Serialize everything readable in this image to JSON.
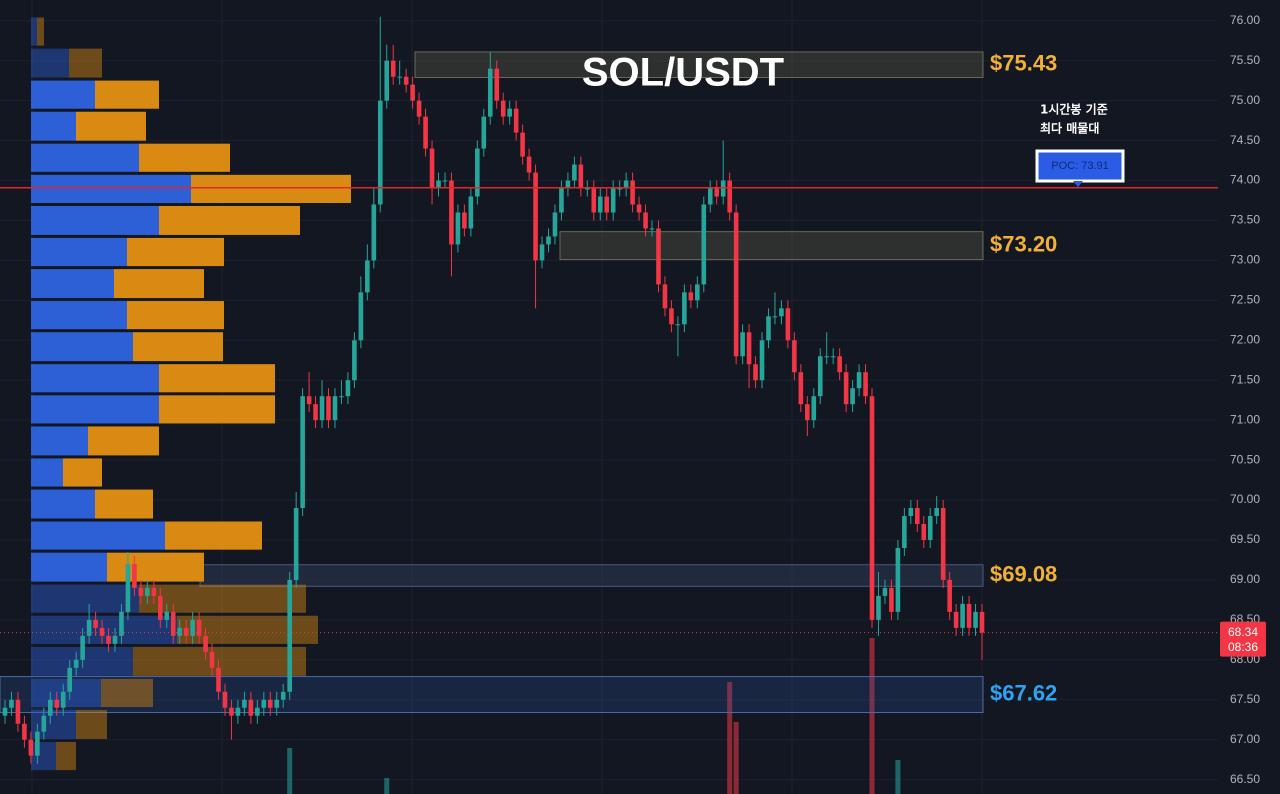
{
  "chart_data": {
    "type": "candlestick",
    "title": "SOL/USDT",
    "up_color": "#26a69a",
    "down_color": "#f23645",
    "open": [
      67.3,
      67.4,
      67.5,
      67.2,
      67.0,
      66.8,
      67.1,
      67.3,
      67.5,
      67.4,
      67.6,
      67.9,
      68.0,
      68.3,
      68.5,
      68.4,
      68.3,
      68.2,
      68.3,
      68.6,
      69.2,
      68.9,
      68.8,
      68.9,
      68.8,
      68.5,
      68.6,
      68.3,
      68.4,
      68.3,
      68.5,
      68.3,
      68.1,
      67.9,
      67.6,
      67.4,
      67.3,
      67.4,
      67.5,
      67.3,
      67.4,
      67.5,
      67.4,
      67.5,
      67.6,
      69.0,
      69.9,
      71.3,
      71.2,
      71.0,
      71.3,
      71.0,
      71.3,
      71.3,
      71.5,
      72.0,
      72.6,
      73.0,
      73.7,
      75.0,
      75.5,
      75.3,
      75.3,
      75.2,
      75.0,
      74.8,
      74.4,
      73.9,
      74.0,
      74.0,
      73.2,
      73.6,
      73.4,
      73.8,
      74.4,
      74.8,
      75.4,
      75.0,
      74.8,
      74.9,
      74.6,
      74.3,
      74.1,
      73.0,
      73.2,
      73.3,
      73.6,
      73.9,
      74.0,
      74.2,
      73.9,
      73.9,
      73.6,
      73.8,
      73.6,
      73.9,
      73.9,
      74.0,
      73.7,
      73.6,
      73.4,
      73.4,
      72.7,
      72.4,
      72.2,
      72.2,
      72.6,
      72.5,
      72.7,
      73.7,
      73.9,
      73.8,
      74.0,
      73.6,
      71.8,
      72.1,
      71.7,
      71.5,
      72.0,
      72.3,
      72.3,
      72.4,
      72.0,
      71.6,
      71.2,
      71.0,
      71.3,
      71.8,
      71.8,
      71.8,
      71.6,
      71.2,
      71.4,
      71.6,
      71.3,
      68.5,
      68.8,
      68.9,
      68.6,
      69.4,
      69.8,
      69.9,
      69.7,
      69.5,
      69.8,
      69.9,
      69.0,
      68.6,
      68.4,
      68.7,
      68.4,
      68.6
    ],
    "high": [
      67.5,
      67.6,
      67.6,
      67.3,
      67.1,
      67.2,
      67.4,
      67.6,
      67.6,
      67.7,
      68.0,
      68.1,
      68.4,
      68.7,
      68.6,
      68.5,
      68.4,
      68.4,
      68.7,
      69.35,
      69.3,
      69.0,
      69.0,
      69.0,
      68.9,
      68.7,
      68.7,
      68.5,
      68.5,
      68.6,
      68.6,
      68.4,
      68.2,
      68.0,
      67.7,
      67.5,
      67.5,
      67.6,
      67.6,
      67.5,
      67.6,
      67.6,
      67.6,
      67.7,
      69.1,
      70.1,
      71.4,
      71.6,
      71.3,
      71.5,
      71.4,
      71.4,
      71.5,
      71.6,
      72.1,
      72.8,
      73.2,
      73.9,
      76.05,
      75.7,
      75.7,
      75.5,
      75.4,
      75.3,
      75.1,
      74.9,
      74.5,
      74.1,
      74.1,
      74.1,
      73.7,
      73.7,
      73.9,
      74.5,
      74.9,
      75.6,
      75.5,
      75.1,
      75.0,
      75.0,
      74.7,
      74.4,
      74.2,
      73.3,
      73.4,
      73.7,
      74.0,
      74.1,
      74.3,
      74.3,
      74.0,
      74.0,
      73.9,
      73.9,
      74.0,
      74.0,
      74.1,
      74.1,
      73.8,
      73.7,
      73.5,
      73.5,
      72.8,
      72.5,
      72.3,
      72.7,
      72.7,
      72.8,
      73.8,
      74.0,
      74.0,
      74.5,
      74.1,
      73.7,
      72.2,
      72.2,
      71.8,
      72.1,
      72.4,
      72.6,
      72.5,
      72.5,
      72.1,
      71.7,
      71.3,
      71.4,
      71.9,
      72.1,
      71.9,
      71.9,
      71.7,
      71.5,
      71.7,
      71.7,
      71.4,
      69.1,
      69.0,
      69.0,
      69.5,
      69.9,
      70.0,
      70.0,
      69.8,
      69.9,
      70.05,
      70.0,
      69.1,
      68.7,
      68.8,
      68.8,
      68.7,
      68.7
    ],
    "low": [
      67.2,
      67.3,
      67.1,
      66.9,
      66.7,
      66.7,
      67.0,
      67.2,
      67.3,
      67.3,
      67.5,
      67.8,
      67.9,
      68.2,
      68.3,
      68.2,
      68.1,
      68.1,
      68.2,
      68.5,
      68.8,
      68.7,
      68.7,
      68.7,
      68.4,
      68.4,
      68.2,
      68.2,
      68.2,
      68.2,
      68.2,
      68.0,
      67.8,
      67.5,
      67.3,
      67.0,
      67.2,
      67.3,
      67.2,
      67.2,
      67.3,
      67.3,
      67.3,
      67.4,
      67.5,
      68.9,
      69.8,
      71.1,
      70.9,
      70.9,
      70.9,
      70.9,
      71.2,
      71.2,
      71.4,
      71.9,
      72.5,
      72.9,
      73.6,
      74.9,
      75.2,
      75.2,
      75.1,
      74.9,
      74.7,
      74.3,
      73.7,
      73.8,
      73.9,
      72.8,
      73.1,
      73.3,
      73.3,
      73.7,
      74.3,
      74.7,
      74.9,
      74.7,
      74.7,
      74.5,
      74.2,
      74.0,
      72.4,
      72.9,
      73.1,
      73.2,
      73.5,
      73.8,
      73.9,
      73.8,
      73.8,
      73.5,
      73.5,
      73.5,
      73.5,
      73.8,
      73.8,
      73.6,
      73.5,
      73.3,
      73.3,
      72.6,
      72.3,
      72.1,
      71.8,
      72.1,
      72.4,
      72.4,
      72.6,
      73.6,
      73.7,
      73.7,
      73.5,
      71.7,
      71.7,
      71.4,
      71.4,
      71.4,
      71.9,
      72.2,
      72.2,
      71.9,
      71.5,
      71.1,
      70.8,
      70.9,
      71.2,
      71.7,
      71.7,
      71.5,
      71.1,
      71.1,
      71.3,
      71.2,
      68.4,
      68.3,
      68.7,
      68.5,
      68.5,
      69.3,
      69.7,
      69.6,
      69.4,
      69.4,
      69.7,
      68.9,
      68.5,
      68.3,
      68.3,
      68.3,
      68.3,
      68.0
    ],
    "close": [
      67.4,
      67.5,
      67.2,
      67.0,
      66.8,
      67.1,
      67.3,
      67.5,
      67.4,
      67.6,
      67.9,
      68.0,
      68.3,
      68.5,
      68.4,
      68.3,
      68.2,
      68.3,
      68.6,
      69.2,
      68.9,
      68.8,
      68.9,
      68.8,
      68.5,
      68.6,
      68.3,
      68.4,
      68.3,
      68.5,
      68.3,
      68.1,
      67.9,
      67.6,
      67.4,
      67.3,
      67.4,
      67.5,
      67.3,
      67.4,
      67.5,
      67.4,
      67.5,
      67.6,
      69.0,
      69.9,
      71.3,
      71.2,
      71.0,
      71.3,
      71.0,
      71.3,
      71.3,
      71.5,
      72.0,
      72.6,
      73.0,
      73.7,
      75.0,
      75.5,
      75.3,
      75.3,
      75.2,
      75.0,
      74.8,
      74.4,
      73.9,
      74.0,
      74.0,
      73.2,
      73.6,
      73.4,
      73.8,
      74.4,
      74.8,
      75.4,
      75.0,
      74.8,
      74.9,
      74.6,
      74.3,
      74.1,
      73.0,
      73.2,
      73.3,
      73.6,
      73.9,
      74.0,
      74.2,
      73.9,
      73.9,
      73.6,
      73.8,
      73.6,
      73.9,
      73.9,
      74.0,
      73.7,
      73.6,
      73.4,
      73.4,
      72.7,
      72.4,
      72.2,
      72.2,
      72.6,
      72.5,
      72.7,
      73.7,
      73.9,
      73.8,
      74.0,
      73.6,
      71.8,
      72.1,
      71.7,
      71.5,
      72.0,
      72.3,
      72.3,
      72.4,
      72.0,
      71.6,
      71.2,
      71.0,
      71.3,
      71.8,
      71.8,
      71.8,
      71.6,
      71.2,
      71.4,
      71.6,
      71.3,
      68.5,
      68.8,
      68.9,
      68.6,
      69.4,
      69.8,
      69.9,
      69.7,
      69.5,
      69.8,
      69.9,
      69.0,
      68.6,
      68.4,
      68.7,
      68.4,
      68.6,
      68.34
    ],
    "volume": [
      null,
      null,
      null,
      null,
      null,
      null,
      null,
      null,
      null,
      null,
      null,
      null,
      null,
      null,
      null,
      null,
      null,
      null,
      null,
      null,
      null,
      null,
      null,
      null,
      null,
      null,
      null,
      null,
      null,
      null,
      null,
      null,
      null,
      null,
      null,
      null,
      null,
      null,
      null,
      null,
      null,
      null,
      null,
      null,
      46,
      null,
      null,
      null,
      null,
      null,
      null,
      null,
      null,
      null,
      null,
      null,
      null,
      null,
      null,
      16,
      null,
      null,
      null,
      null,
      null,
      null,
      null,
      null,
      null,
      null,
      null,
      null,
      null,
      null,
      null,
      null,
      null,
      null,
      null,
      null,
      null,
      null,
      null,
      null,
      null,
      null,
      null,
      null,
      null,
      null,
      null,
      null,
      null,
      null,
      null,
      null,
      null,
      null,
      null,
      null,
      null,
      null,
      null,
      null,
      null,
      null,
      null,
      null,
      null,
      null,
      null,
      null,
      112,
      72,
      null,
      null,
      null,
      null,
      null,
      null,
      null,
      null,
      null,
      null,
      null,
      null,
      null,
      null,
      null,
      null,
      null,
      null,
      null,
      null,
      156,
      null,
      null,
      null,
      34,
      null,
      null,
      null,
      null,
      null,
      null,
      null,
      null,
      null,
      null,
      null,
      null,
      null
    ],
    "ylim": [
      66.32,
      76.26
    ],
    "yticks": [
      {
        "value": 66.5,
        "label": "66.50"
      },
      {
        "value": 67,
        "label": "67.00"
      },
      {
        "value": 67.5,
        "label": "67.50"
      },
      {
        "value": 68,
        "label": "68.00"
      },
      {
        "value": 68.5,
        "label": "68.50"
      },
      {
        "value": 69,
        "label": "69.00"
      },
      {
        "value": 69.5,
        "label": "69.50"
      },
      {
        "value": 70,
        "label": "70.00"
      },
      {
        "value": 70.5,
        "label": "70.50"
      },
      {
        "value": 71,
        "label": "71.00"
      },
      {
        "value": 71.5,
        "label": "71.50"
      },
      {
        "value": 72,
        "label": "72.00"
      },
      {
        "value": 72.5,
        "label": "72.50"
      },
      {
        "value": 73,
        "label": "73.00"
      },
      {
        "value": 73.5,
        "label": "73.50"
      },
      {
        "value": 74,
        "label": "74.00"
      },
      {
        "value": 74.5,
        "label": "74.50"
      },
      {
        "value": 75,
        "label": "75.00"
      },
      {
        "value": 75.5,
        "label": "75.50"
      },
      {
        "value": 76,
        "label": "76.00"
      }
    ],
    "grid": true,
    "volume_profile": {
      "bins": [
        66.6,
        66.99,
        67.39,
        67.78,
        68.18,
        68.57,
        68.96,
        69.36,
        69.75,
        70.15,
        70.54,
        70.94,
        71.33,
        71.72,
        72.12,
        72.51,
        72.91,
        73.3,
        73.7,
        74.09,
        74.48,
        74.88,
        75.27,
        75.67,
        76.06
      ],
      "buy": [
        25,
        45,
        70,
        102,
        146,
        108,
        76,
        134,
        64,
        32,
        57,
        128,
        128,
        102,
        96,
        83,
        96,
        128,
        160,
        108,
        45,
        64,
        38,
        6
      ],
      "sell": [
        20,
        31,
        52,
        173,
        141,
        167,
        97,
        97,
        58,
        39,
        71,
        116,
        116,
        90,
        97,
        90,
        97,
        141,
        160,
        91,
        70,
        64,
        33,
        7
      ],
      "buy_color": "#2d5fd6",
      "sell_color": "#d98a12",
      "value_area": [
        68.96,
        75.27
      ]
    },
    "zones": [
      {
        "value": 75.43,
        "label": "$75.43",
        "top": 75.61,
        "bottom": 75.29,
        "color": "#f2b134"
      },
      {
        "value": 73.2,
        "label": "$73.20",
        "top": 73.36,
        "bottom": 73.01,
        "color": "#f2b134"
      },
      {
        "value": 69.08,
        "label": "$69.08",
        "top": 69.19,
        "bottom": 68.92,
        "color": "#f2b134"
      },
      {
        "value": 67.62,
        "label": "$67.62",
        "top": 67.79,
        "bottom": 67.34,
        "color": "#2ea3f2"
      }
    ],
    "poc": {
      "value": 73.91,
      "label": "POC: 73.91",
      "color": "#e5262b"
    },
    "annotation": [
      "1시간봉 기준",
      "최다 매물대"
    ],
    "last_price": {
      "value": 68.34,
      "countdown": "08:36",
      "color": "#f23645"
    }
  }
}
